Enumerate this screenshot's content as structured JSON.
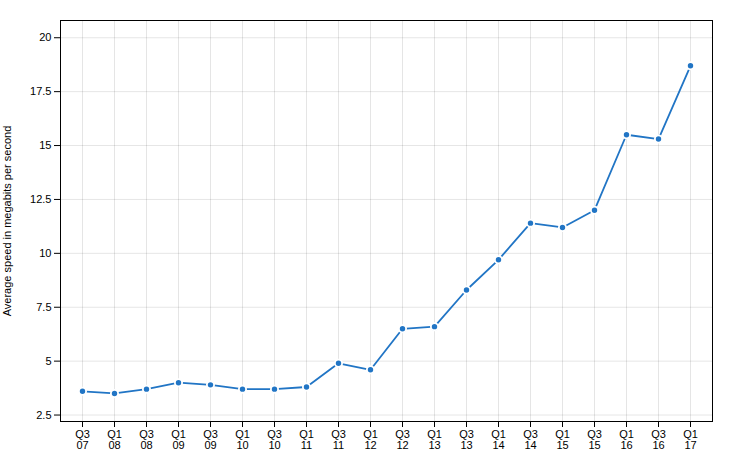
{
  "chart_data": {
    "type": "line",
    "categories": [
      "Q3\n07",
      "Q1\n08",
      "Q3\n08",
      "Q1\n09",
      "Q3\n09",
      "Q1\n10",
      "Q3\n10",
      "Q1\n11",
      "Q3\n11",
      "Q1\n12",
      "Q3\n12",
      "Q1\n13",
      "Q3\n13",
      "Q1\n14",
      "Q3\n14",
      "Q1\n15",
      "Q3\n15",
      "Q1\n16",
      "Q3\n16",
      "Q1\n17"
    ],
    "values": [
      3.6,
      3.5,
      3.7,
      4.0,
      3.9,
      3.7,
      3.7,
      3.8,
      4.9,
      4.6,
      6.5,
      6.6,
      8.3,
      9.7,
      11.4,
      11.2,
      12.0,
      15.5,
      15.3,
      18.7
    ],
    "ylabel": "Average speed in megabits per second",
    "color": "#2175c5",
    "marker": "circle",
    "ylim": [
      2.2,
      20.8
    ],
    "yticks": [
      2.5,
      5,
      7.5,
      10,
      12.5,
      15,
      17.5,
      20
    ],
    "grid": true
  }
}
